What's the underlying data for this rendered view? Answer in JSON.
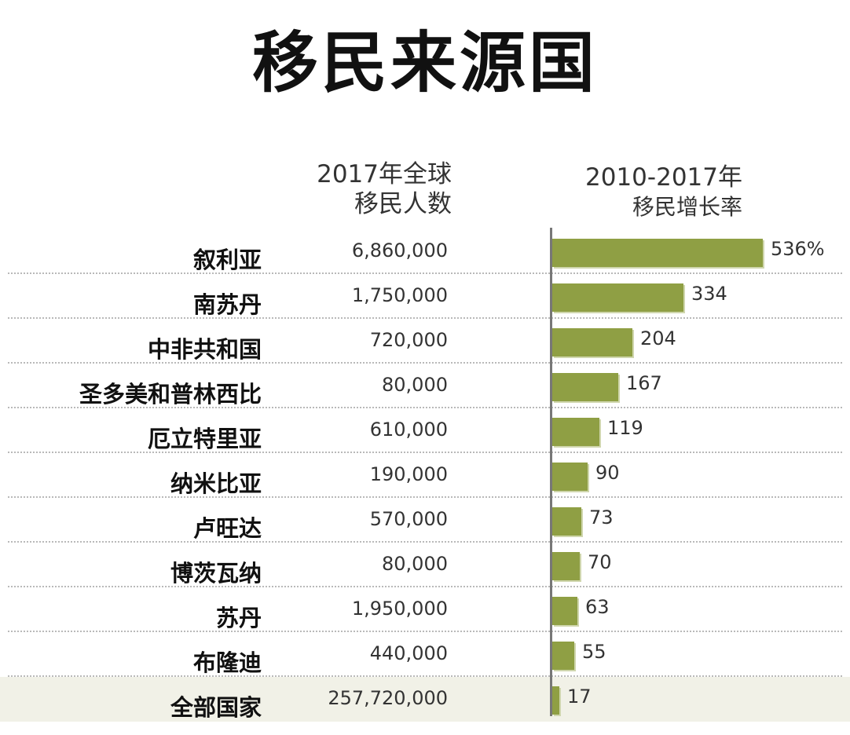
{
  "title": "移民来源国",
  "headers": {
    "population": [
      "2017年全球",
      "移民人数"
    ],
    "growth": [
      "2010-2017年",
      "移民增长率"
    ]
  },
  "chart_data": {
    "type": "bar",
    "title": "移民来源国",
    "categories": [
      "叙利亚",
      "南苏丹",
      "中非共和国",
      "圣多美和普林西比",
      "厄立特里亚",
      "纳米比亚",
      "卢旺达",
      "博茨瓦纳",
      "苏丹",
      "布隆迪",
      "全部国家"
    ],
    "population_labels": [
      "6,860,000",
      "1,750,000",
      "720,000",
      "80,000",
      "610,000",
      "190,000",
      "570,000",
      "80,000",
      "1,950,000",
      "440,000",
      "257,720,000"
    ],
    "growth_labels": [
      "536%",
      "334",
      "204",
      "167",
      "119",
      "90",
      "73",
      "70",
      "63",
      "55",
      "17"
    ],
    "series": [
      {
        "values": [
          536,
          334,
          204,
          167,
          119,
          90,
          73,
          70,
          63,
          55,
          17
        ]
      }
    ],
    "xlim": [
      0,
      536
    ],
    "highlight_category": "全部国家",
    "colors": {
      "bar": "#8f9f44",
      "total_row_bg": "#f1f1e7"
    },
    "grid": false
  }
}
